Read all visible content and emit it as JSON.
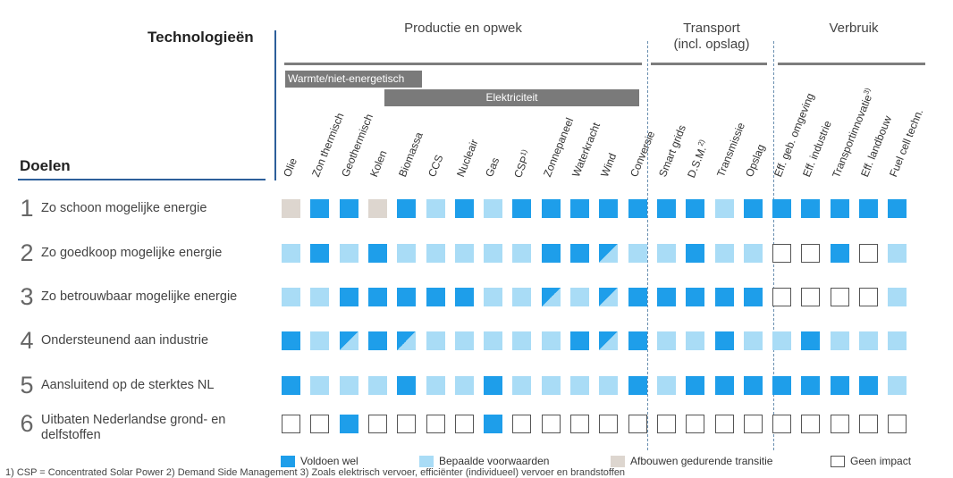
{
  "header": {
    "technologies_title": "Technologieën",
    "goals_title": "Doelen"
  },
  "groups": [
    {
      "label": "Productie en opwek"
    },
    {
      "label": "Transport\n(incl. opslag)"
    },
    {
      "label": "Verbruik"
    }
  ],
  "subgroups": {
    "heat": "Warmte/niet-energetisch",
    "electricity": "Elektriciteit"
  },
  "columns": [
    {
      "label": "Olie"
    },
    {
      "label": "Zon thermisch"
    },
    {
      "label": "Geothermisch"
    },
    {
      "label": "Kolen"
    },
    {
      "label": "Biomassa"
    },
    {
      "label": "CCS"
    },
    {
      "label": "Nucleair"
    },
    {
      "label": "Gas"
    },
    {
      "label": "CSP",
      "sup": "1)"
    },
    {
      "label": "Zonnepaneel"
    },
    {
      "label": "Waterkracht"
    },
    {
      "label": "Wind"
    },
    {
      "label": "Conversie"
    },
    {
      "label": "Smart grids"
    },
    {
      "label": "D.S.M.",
      "sup": "2)"
    },
    {
      "label": "Transmissie"
    },
    {
      "label": "Opslag"
    },
    {
      "label": "Eff. geb. omgeving"
    },
    {
      "label": "Eff. industrie"
    },
    {
      "label": "Transportinnovatie",
      "sup": "3)"
    },
    {
      "label": "Eff. landbouw"
    },
    {
      "label": "Fuel cell techn."
    }
  ],
  "rows": [
    {
      "num": "1",
      "label": "Zo schoon mogelijke energie",
      "cells": [
        "grey",
        "dark",
        "dark",
        "grey",
        "dark",
        "light",
        "dark",
        "light",
        "dark",
        "dark",
        "dark",
        "dark",
        "dark",
        "dark",
        "dark",
        "light",
        "dark",
        "dark",
        "dark",
        "dark",
        "dark",
        "dark"
      ]
    },
    {
      "num": "2",
      "label": "Zo goedkoop mogelijke energie",
      "cells": [
        "light",
        "dark",
        "light",
        "dark",
        "light",
        "light",
        "light",
        "light",
        "light",
        "dark",
        "dark",
        "diag",
        "light",
        "light",
        "dark",
        "light",
        "light",
        "empty",
        "empty",
        "dark",
        "empty",
        "light"
      ]
    },
    {
      "num": "3",
      "label": "Zo betrouwbaar mogelijke energie",
      "cells": [
        "light",
        "light",
        "dark",
        "dark",
        "dark",
        "dark",
        "dark",
        "light",
        "light",
        "diag",
        "light",
        "diag",
        "dark",
        "dark",
        "dark",
        "dark",
        "dark",
        "empty",
        "empty",
        "empty",
        "empty",
        "light"
      ]
    },
    {
      "num": "4",
      "label": "Ondersteunend aan industrie",
      "cells": [
        "dark",
        "light",
        "diag",
        "dark",
        "diag",
        "light",
        "light",
        "light",
        "light",
        "light",
        "dark",
        "diag",
        "dark",
        "light",
        "light",
        "dark",
        "light",
        "light",
        "dark",
        "light",
        "light",
        "light"
      ]
    },
    {
      "num": "5",
      "label": "Aansluitend op de sterktes NL",
      "cells": [
        "dark",
        "light",
        "light",
        "light",
        "dark",
        "light",
        "light",
        "dark",
        "light",
        "light",
        "light",
        "light",
        "dark",
        "light",
        "dark",
        "dark",
        "dark",
        "dark",
        "dark",
        "dark",
        "dark",
        "light"
      ]
    },
    {
      "num": "6",
      "label": "Uitbaten Nederlandse grond- en\ndelfstoffen",
      "cells": [
        "empty",
        "empty",
        "dark",
        "empty",
        "empty",
        "empty",
        "empty",
        "dark",
        "empty",
        "empty",
        "empty",
        "empty",
        "empty",
        "empty",
        "empty",
        "empty",
        "empty",
        "empty",
        "empty",
        "empty",
        "empty",
        "empty"
      ]
    }
  ],
  "legend": [
    {
      "status": "dark",
      "label": "Voldoen wel"
    },
    {
      "status": "light",
      "label": "Bepaalde voorwaarden"
    },
    {
      "status": "grey",
      "label": "Afbouwen gedurende transitie"
    },
    {
      "status": "empty",
      "label": "Geen impact"
    }
  ],
  "footnote": "1) CSP = Concentrated Solar Power  2) Demand Side Management  3) Zoals elektrisch vervoer, efficiënter (individueel) vervoer en brandstoffen",
  "colors": {
    "dark": "#1e9eea",
    "light": "#a9dcf6",
    "grey": "#ddd6cf",
    "rule": "#2d5f9a"
  }
}
